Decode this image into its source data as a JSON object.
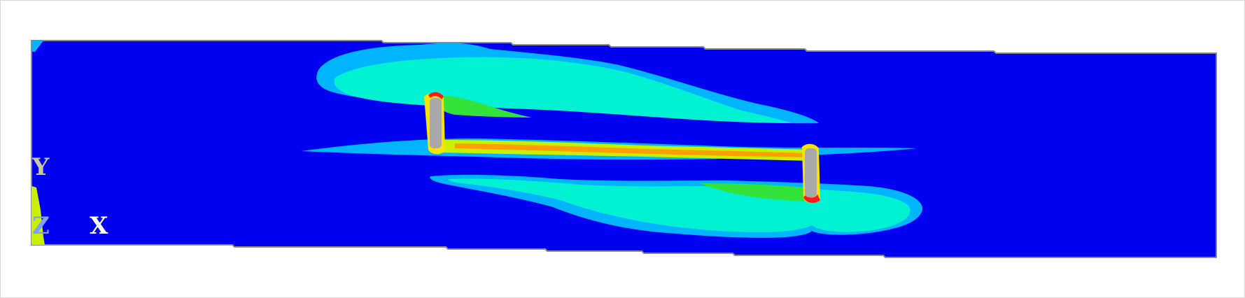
{
  "axes": {
    "y_label": "Y",
    "z_label": "Z",
    "x_label": "X"
  },
  "colors": {
    "background": "#ffffff",
    "frame_border": "#d8d8d8",
    "outline": "#8a8a8a",
    "band_blue": "#0000f0",
    "band_light_blue": "#00b4ff",
    "band_cyan": "#00f2d2",
    "band_green": "#33e33a",
    "band_yellow_green": "#c8f000",
    "band_yellow": "#f7e300",
    "band_orange": "#ffa000",
    "band_red": "#ff1a1a",
    "hole_gray": "#a8a8a8",
    "triad_y": "#c8c8a0",
    "triad_z": "#7fa0ff",
    "triad_x": "#ffffff"
  }
}
